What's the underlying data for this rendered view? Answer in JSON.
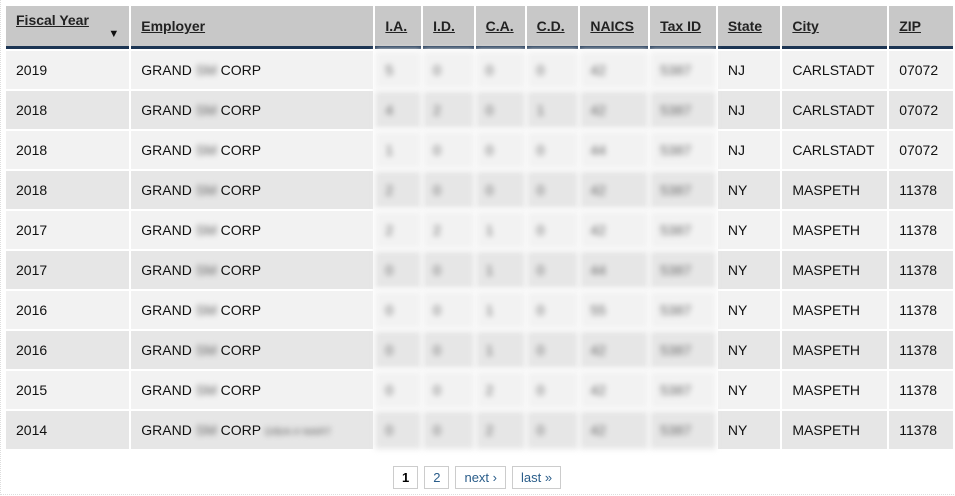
{
  "columns": [
    "Fiscal Year",
    "Employer",
    "I.A.",
    "I.D.",
    "C.A.",
    "C.D.",
    "NAICS",
    "Tax ID",
    "State",
    "City",
    "ZIP"
  ],
  "sort_icon": "caret-down-icon",
  "rows": [
    {
      "year": "2019",
      "emp1": "GRAND",
      "emp_blur": "SM",
      "emp2": "CORP",
      "extra": "",
      "ia": "5",
      "id": "0",
      "ca": "0",
      "cd": "0",
      "naics": "42",
      "tax": "5387",
      "state": "NJ",
      "city": "CARLSTADT",
      "zip": "07072"
    },
    {
      "year": "2018",
      "emp1": "GRAND",
      "emp_blur": "SM",
      "emp2": "CORP",
      "extra": "",
      "ia": "4",
      "id": "2",
      "ca": "0",
      "cd": "1",
      "naics": "42",
      "tax": "5387",
      "state": "NJ",
      "city": "CARLSTADT",
      "zip": "07072"
    },
    {
      "year": "2018",
      "emp1": "GRAND",
      "emp_blur": "SM",
      "emp2": "CORP",
      "extra": "",
      "ia": "1",
      "id": "0",
      "ca": "0",
      "cd": "0",
      "naics": "44",
      "tax": "5387",
      "state": "NJ",
      "city": "CARLSTADT",
      "zip": "07072"
    },
    {
      "year": "2018",
      "emp1": "GRAND",
      "emp_blur": "SM",
      "emp2": "CORP",
      "extra": "",
      "ia": "2",
      "id": "0",
      "ca": "0",
      "cd": "0",
      "naics": "42",
      "tax": "5387",
      "state": "NY",
      "city": "MASPETH",
      "zip": "11378"
    },
    {
      "year": "2017",
      "emp1": "GRAND",
      "emp_blur": "SM",
      "emp2": "CORP",
      "extra": "",
      "ia": "2",
      "id": "2",
      "ca": "1",
      "cd": "0",
      "naics": "42",
      "tax": "5387",
      "state": "NY",
      "city": "MASPETH",
      "zip": "11378"
    },
    {
      "year": "2017",
      "emp1": "GRAND",
      "emp_blur": "SM",
      "emp2": "CORP",
      "extra": "",
      "ia": "0",
      "id": "0",
      "ca": "1",
      "cd": "0",
      "naics": "44",
      "tax": "5387",
      "state": "NY",
      "city": "MASPETH",
      "zip": "11378"
    },
    {
      "year": "2016",
      "emp1": "GRAND",
      "emp_blur": "SM",
      "emp2": "CORP",
      "extra": "",
      "ia": "0",
      "id": "0",
      "ca": "1",
      "cd": "0",
      "naics": "55",
      "tax": "5387",
      "state": "NY",
      "city": "MASPETH",
      "zip": "11378"
    },
    {
      "year": "2016",
      "emp1": "GRAND",
      "emp_blur": "SM",
      "emp2": "CORP",
      "extra": "",
      "ia": "0",
      "id": "0",
      "ca": "1",
      "cd": "0",
      "naics": "42",
      "tax": "5387",
      "state": "NY",
      "city": "MASPETH",
      "zip": "11378"
    },
    {
      "year": "2015",
      "emp1": "GRAND",
      "emp_blur": "SM",
      "emp2": "CORP",
      "extra": "",
      "ia": "0",
      "id": "0",
      "ca": "2",
      "cd": "0",
      "naics": "42",
      "tax": "5387",
      "state": "NY",
      "city": "MASPETH",
      "zip": "11378"
    },
    {
      "year": "2014",
      "emp1": "GRAND",
      "emp_blur": "SM",
      "emp2": "CORP",
      "extra": "D/B/A H MART",
      "ia": "0",
      "id": "0",
      "ca": "2",
      "cd": "0",
      "naics": "42",
      "tax": "5387",
      "state": "NY",
      "city": "MASPETH",
      "zip": "11378"
    }
  ],
  "pagination": {
    "current": "1",
    "pages": [
      "2"
    ],
    "next": "next ›",
    "last": "last »"
  }
}
